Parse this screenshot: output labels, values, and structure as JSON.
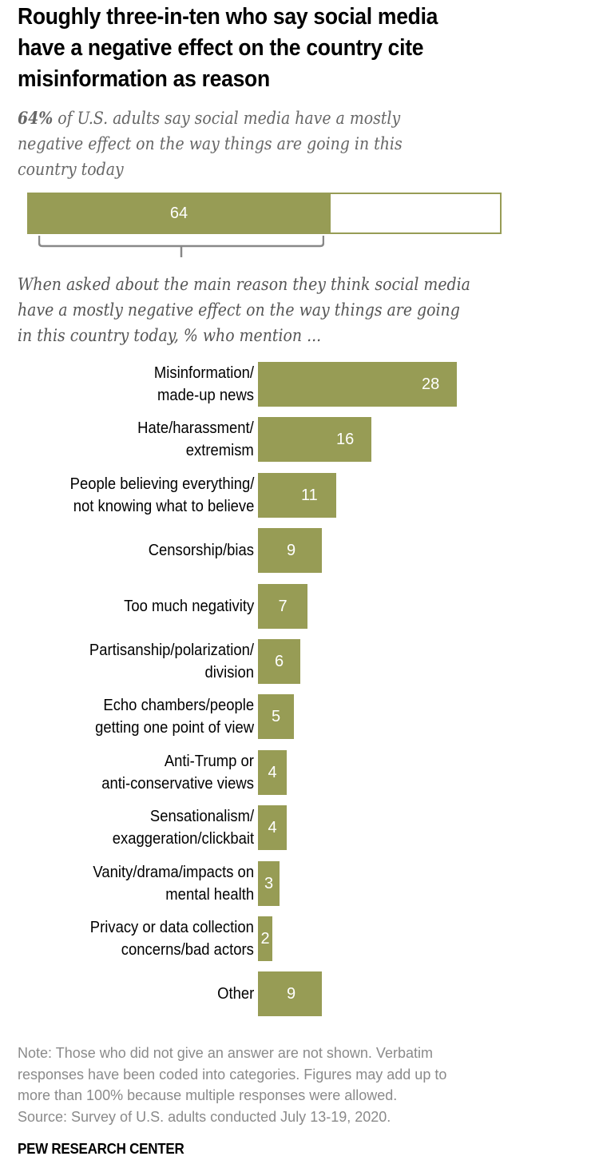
{
  "title": "Roughly three-in-ten who say social media have a negative effect on the country cite misinformation as reason",
  "subtitle": {
    "lead": "64%",
    "rest": " of U.S. adults say social media have a mostly negative effect on the way things are going in this country today"
  },
  "question": "When asked about the main reason they think social media have a mostly negative effect on the way things are going in this country today, % who mention ...",
  "note_lines": [
    "Note: Those who did not give an answer are not shown. Verbatim",
    "responses have been coded into categories. Figures may add up to",
    "more than 100% because multiple responses were allowed.",
    "Source: Survey of U.S. adults conducted July 13-19, 2020."
  ],
  "brand": "PEW RESEARCH CENTER",
  "colors": {
    "bar": "#979C55",
    "bar_text": "#ffffff"
  },
  "chart_data": [
    {
      "type": "bar",
      "orientation": "horizontal-stacked",
      "title": "Social media effect on the country",
      "categories": [
        "Mostly negative effect"
      ],
      "values": [
        64
      ],
      "max": 100,
      "value_label": "64"
    },
    {
      "type": "bar",
      "orientation": "horizontal",
      "title": "Main reason social media have a mostly negative effect, % who mention",
      "xlabel": "",
      "ylabel": "",
      "xlim": [
        0,
        35
      ],
      "grid": false,
      "categories": [
        [
          "Misinformation/",
          "made-up news"
        ],
        [
          "Hate/harassment/",
          "extremism"
        ],
        [
          "People believing everything/",
          "not knowing what to believe"
        ],
        [
          "Censorship/bias"
        ],
        [
          "Too much negativity"
        ],
        [
          "Partisanship/polarization/",
          "division"
        ],
        [
          "Echo chambers/people",
          "getting one point of view"
        ],
        [
          "Anti-Trump or",
          "anti-conservative views"
        ],
        [
          "Sensationalism/",
          "exaggeration/clickbait"
        ],
        [
          "Vanity/drama/impacts on",
          "mental health"
        ],
        [
          "Privacy or data collection",
          "concerns/bad actors"
        ],
        [
          "Other"
        ]
      ],
      "values": [
        28,
        16,
        11,
        9,
        7,
        6,
        5,
        4,
        4,
        3,
        2,
        9
      ]
    }
  ]
}
